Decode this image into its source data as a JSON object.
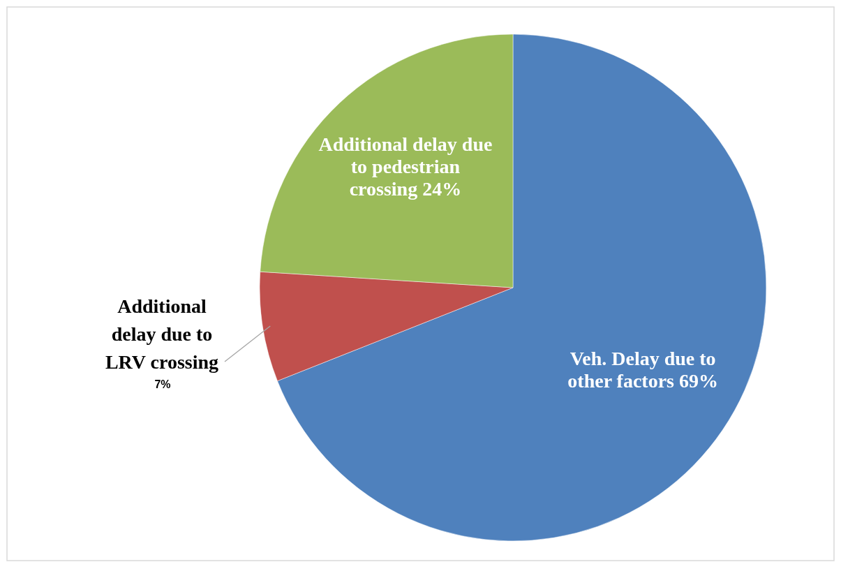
{
  "chart_data": {
    "type": "pie",
    "categories": [
      "Veh. Delay due to other factors",
      "Additional delay due to LRV crossing",
      "Additional delay due to pedestrian crossing"
    ],
    "values": [
      69,
      7,
      24
    ],
    "value_labels": [
      "69%",
      "7%",
      "24%"
    ],
    "colors": [
      "#4f81bd",
      "#c0504d",
      "#9bbb59"
    ],
    "legend": false
  }
}
